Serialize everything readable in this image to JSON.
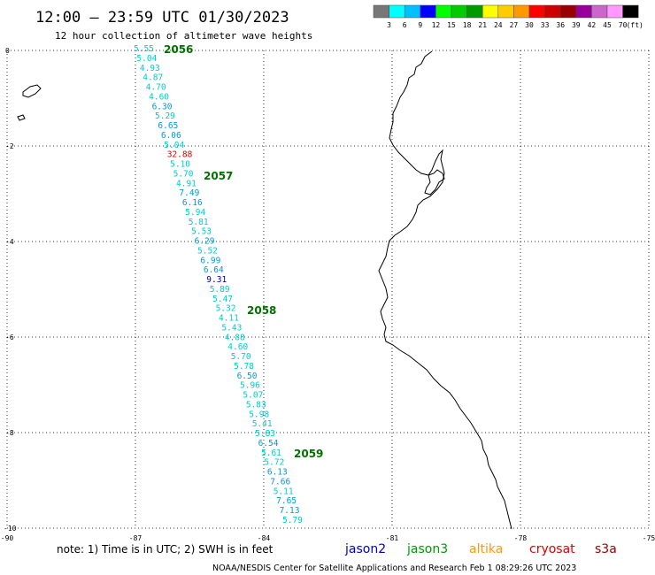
{
  "header": {
    "title": "12:00 — 23:59 UTC 01/30/2023",
    "subtitle": "12 hour collection of altimeter wave heights"
  },
  "legend_scale": {
    "colors": [
      "#777777",
      "#00ffff",
      "#00bfff",
      "#0000ff",
      "#00ff00",
      "#00cc00",
      "#009900",
      "#ffff00",
      "#ffcc00",
      "#ff9900",
      "#ff0000",
      "#cc0000",
      "#990000",
      "#990099",
      "#cc66cc",
      "#ff99ff",
      "#000000"
    ],
    "labels": [
      "3",
      "6",
      "9",
      "12",
      "15",
      "18",
      "21",
      "24",
      "27",
      "30",
      "33",
      "36",
      "39",
      "42",
      "45",
      "70",
      "(ft)"
    ]
  },
  "map": {
    "lon_ticks": [
      "-90",
      "-87",
      "-84",
      "-81",
      "-78",
      "-75"
    ],
    "lat_ticks": [
      "0",
      "-2",
      "-4",
      "-6",
      "-8",
      "-10"
    ],
    "coastline_color": "#000000",
    "grid_color": "#000000"
  },
  "passes": [
    {
      "label": "2056"
    },
    {
      "label": "2057"
    },
    {
      "label": "2058"
    },
    {
      "label": "2059"
    }
  ],
  "observations": [
    {
      "v": "5.55",
      "c": "#00cccc"
    },
    {
      "v": "5.04",
      "c": "#00cccc"
    },
    {
      "v": "4.93",
      "c": "#00cccc"
    },
    {
      "v": "4.87",
      "c": "#00cccc"
    },
    {
      "v": "4.70",
      "c": "#00cccc"
    },
    {
      "v": "4.60",
      "c": "#00cccc"
    },
    {
      "v": "6.30",
      "c": "#0099dd"
    },
    {
      "v": "5.29",
      "c": "#00cccc"
    },
    {
      "v": "6.65",
      "c": "#0099dd"
    },
    {
      "v": "6.06",
      "c": "#0099dd"
    },
    {
      "v": "5.04",
      "c": "#00cccc"
    },
    {
      "v": "32.88",
      "c": "#dd0000"
    },
    {
      "v": "5.10",
      "c": "#00cccc"
    },
    {
      "v": "5.70",
      "c": "#00cccc"
    },
    {
      "v": "4.91",
      "c": "#00cccc"
    },
    {
      "v": "7.49",
      "c": "#0099dd"
    },
    {
      "v": "6.16",
      "c": "#0099dd"
    },
    {
      "v": "5.94",
      "c": "#00cccc"
    },
    {
      "v": "5.81",
      "c": "#00cccc"
    },
    {
      "v": "5.53",
      "c": "#00cccc"
    },
    {
      "v": "6.29",
      "c": "#0099dd"
    },
    {
      "v": "5.52",
      "c": "#00cccc"
    },
    {
      "v": "6.99",
      "c": "#0099dd"
    },
    {
      "v": "6.64",
      "c": "#0099dd"
    },
    {
      "v": "9.31",
      "c": "#000099"
    },
    {
      "v": "5.89",
      "c": "#00cccc"
    },
    {
      "v": "5.47",
      "c": "#00cccc"
    },
    {
      "v": "5.32",
      "c": "#00cccc"
    },
    {
      "v": "4.11",
      "c": "#00cccc"
    },
    {
      "v": "5.43",
      "c": "#00cccc"
    },
    {
      "v": "4.88",
      "c": "#00cccc"
    },
    {
      "v": "4.60",
      "c": "#00cccc"
    },
    {
      "v": "5.70",
      "c": "#00cccc"
    },
    {
      "v": "5.78",
      "c": "#00cccc"
    },
    {
      "v": "6.50",
      "c": "#0099dd"
    },
    {
      "v": "5.96",
      "c": "#00cccc"
    },
    {
      "v": "5.07",
      "c": "#00cccc"
    },
    {
      "v": "5.83",
      "c": "#00cccc"
    },
    {
      "v": "5.98",
      "c": "#00cccc"
    },
    {
      "v": "5.41",
      "c": "#00cccc"
    },
    {
      "v": "5.83",
      "c": "#00cccc"
    },
    {
      "v": "6.54",
      "c": "#0099dd"
    },
    {
      "v": "5.61",
      "c": "#00cccc"
    },
    {
      "v": "5.72",
      "c": "#00cccc"
    },
    {
      "v": "6.13",
      "c": "#0099dd"
    },
    {
      "v": "7.66",
      "c": "#0099dd"
    },
    {
      "v": "5.11",
      "c": "#00cccc"
    },
    {
      "v": "7.65",
      "c": "#0099dd"
    },
    {
      "v": "7.13",
      "c": "#0099dd"
    },
    {
      "v": "5.79",
      "c": "#00cccc"
    }
  ],
  "footer": {
    "note": "note:  1) Time is in UTC;  2) SWH is in feet",
    "satellites": [
      {
        "name": "jason2",
        "color": "#0000cc"
      },
      {
        "name": "jason3",
        "color": "#009900"
      },
      {
        "name": "altika",
        "color": "#ff9900"
      },
      {
        "name": "cryosat",
        "color": "#dd0000"
      },
      {
        "name": "s3a",
        "color": "#990000"
      }
    ],
    "credit": "NOAA/NESDIS Center for Satellite Applications and Research     Feb  1 08:29:26 UTC 2023"
  }
}
